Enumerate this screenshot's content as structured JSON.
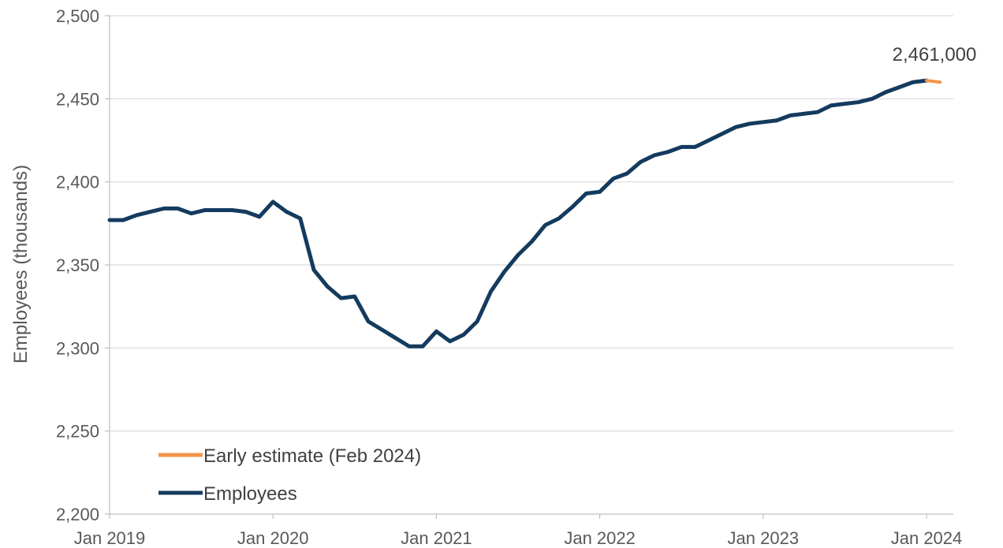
{
  "chart_data": {
    "type": "line",
    "title": "",
    "xlabel": "",
    "ylabel": "Employees (thousands)",
    "ylim": [
      2200,
      2500
    ],
    "yticks": [
      2200,
      2250,
      2300,
      2350,
      2400,
      2450,
      2500
    ],
    "ytick_labels": [
      "2,200",
      "2,250",
      "2,300",
      "2,350",
      "2,400",
      "2,450",
      "2,500"
    ],
    "xticks": [
      {
        "x": "2019-01",
        "label": "Jan 2019"
      },
      {
        "x": "2020-01",
        "label": "Jan 2020"
      },
      {
        "x": "2021-01",
        "label": "Jan 2021"
      },
      {
        "x": "2022-01",
        "label": "Jan 2022"
      },
      {
        "x": "2023-01",
        "label": "Jan 2023"
      },
      {
        "x": "2024-01",
        "label": "Jan 2024"
      }
    ],
    "grid": "horizontal",
    "legend_position": "bottom-left",
    "series": [
      {
        "name": "Early estimate (Feb 2024)",
        "color": "#F4964A",
        "x": [
          "2024-01",
          "2024-02"
        ],
        "y": [
          2461,
          2460
        ]
      },
      {
        "name": "Employees",
        "color": "#143B5E",
        "x": [
          "2019-01",
          "2019-02",
          "2019-03",
          "2019-04",
          "2019-05",
          "2019-06",
          "2019-07",
          "2019-08",
          "2019-09",
          "2019-10",
          "2019-11",
          "2019-12",
          "2020-01",
          "2020-02",
          "2020-03",
          "2020-04",
          "2020-05",
          "2020-06",
          "2020-07",
          "2020-08",
          "2020-09",
          "2020-10",
          "2020-11",
          "2020-12",
          "2021-01",
          "2021-02",
          "2021-03",
          "2021-04",
          "2021-05",
          "2021-06",
          "2021-07",
          "2021-08",
          "2021-09",
          "2021-10",
          "2021-11",
          "2021-12",
          "2022-01",
          "2022-02",
          "2022-03",
          "2022-04",
          "2022-05",
          "2022-06",
          "2022-07",
          "2022-08",
          "2022-09",
          "2022-10",
          "2022-11",
          "2022-12",
          "2023-01",
          "2023-02",
          "2023-03",
          "2023-04",
          "2023-05",
          "2023-06",
          "2023-07",
          "2023-08",
          "2023-09",
          "2023-10",
          "2023-11",
          "2023-12",
          "2024-01"
        ],
        "y": [
          2377,
          2377,
          2380,
          2382,
          2384,
          2384,
          2381,
          2383,
          2383,
          2383,
          2382,
          2379,
          2388,
          2382,
          2378,
          2347,
          2337,
          2330,
          2331,
          2316,
          2311,
          2306,
          2301,
          2301,
          2310,
          2304,
          2308,
          2316,
          2334,
          2346,
          2356,
          2364,
          2374,
          2378,
          2385,
          2393,
          2394,
          2402,
          2405,
          2412,
          2416,
          2418,
          2421,
          2421,
          2425,
          2429,
          2433,
          2435,
          2436,
          2437,
          2440,
          2441,
          2442,
          2446,
          2447,
          2448,
          2450,
          2454,
          2457,
          2460,
          2461
        ]
      }
    ],
    "annotations": [
      {
        "text": "2,461,000",
        "x": "2024-01",
        "y": 2461
      }
    ]
  }
}
